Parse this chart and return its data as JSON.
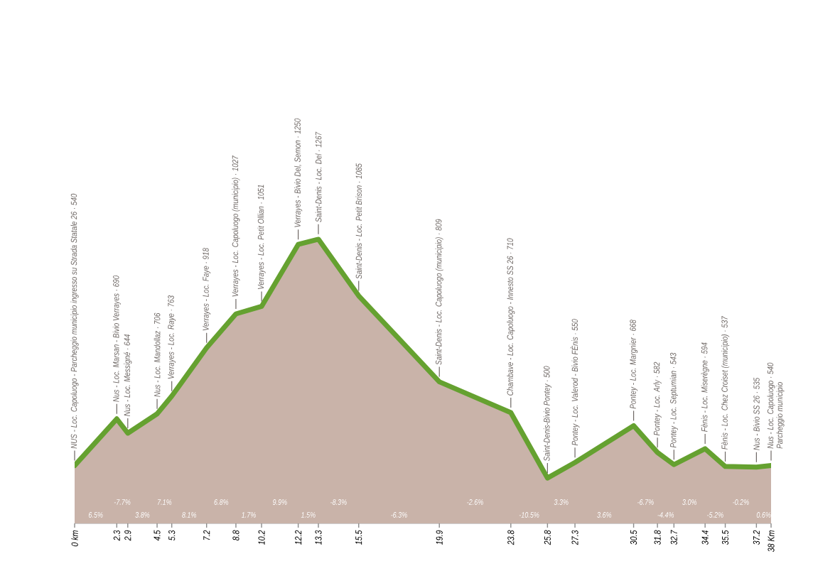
{
  "chart_data": {
    "type": "area",
    "x": [
      0,
      2.3,
      2.9,
      4.5,
      5.3,
      7.2,
      8.8,
      10.2,
      12.2,
      13.3,
      15.5,
      19.9,
      23.8,
      25.8,
      27.3,
      30.5,
      31.8,
      32.7,
      34.4,
      35.5,
      37.2,
      38
    ],
    "values": [
      540,
      690,
      644,
      706,
      763,
      918,
      1027,
      1051,
      1250,
      1267,
      1085,
      809,
      710,
      500,
      550,
      668,
      582,
      543,
      594,
      537,
      535,
      540
    ],
    "value_labels": [
      "NUS - Loc. Capoluogo - Parcheggio municipio ingresso su Strada Statale 26 · 540",
      "Nus - Loc. Marsan - Bivio Verrayes · 690",
      "Nus - Loc. Messigné · 644",
      "Nus - Loc. Mandollaz · 706",
      "Verrayes - Loc. Raye · 763",
      "Verrayes - Loc. Faye · 918",
      "Verrayes - Loc. Capoluogo (municipio) · 1027",
      "Verrayes - Loc. Petit Ollian · 1051",
      "Verrayes - Bivio Del, Semon · 1250",
      "Saint-Denis - Loc. Del · 1267",
      "Saint-Denis - Loc. Petit Brison · 1085",
      "Saint-Denis - Loc. Capoluogo (municipio) · 809",
      "Chambave - Loc. Capoluogo - Innesto SS 26 · 710",
      "Saint-Denis-Bivio Pontey · 500",
      "Pontey - Loc. Valerod - Bivio FÈnis · 550",
      "Pontey - Loc. Margnier · 668",
      "Pontey - Loc. Arly · 582",
      "Pontey - Loc. Septumian · 543",
      "Fènis - Loc. Miserègne · 594",
      "Fènis - Loc. Chez Croiset (municipio) · 537",
      "Nus - Bivio SS 26 · 535",
      "Nus - Loc. Capoluogo · 540"
    ],
    "color": "#65a130",
    "xlim": [
      0,
      38
    ],
    "xticks": [
      {
        "value": 0,
        "label": "0 km"
      },
      2.3,
      2.9,
      4.5,
      5.3,
      7.2,
      8.8,
      10.2,
      12.2,
      13.3,
      15.5,
      19.9,
      23.8,
      25.8,
      27.3,
      30.5,
      31.8,
      32.7,
      34.4,
      35.5,
      37.2,
      {
        "value": 38,
        "label": "38 Km"
      }
    ],
    "annotations": [
      {
        "text": "Parcheggio municipio",
        "x": 38,
        "y": 540
      },
      "6.5%",
      "-7.7%",
      "3.8%",
      "7.1%",
      "8.1%",
      "6.8%",
      "1.7%",
      "9.9%",
      "1.5%",
      "-8.3%",
      "-6.3%",
      "-2.6%",
      "-10.5%",
      "3.3%",
      "3.6%",
      "-6.7%",
      "-4.4%",
      "3.0%",
      "-5.2%",
      "-0.2%",
      "0.6%"
    ]
  }
}
